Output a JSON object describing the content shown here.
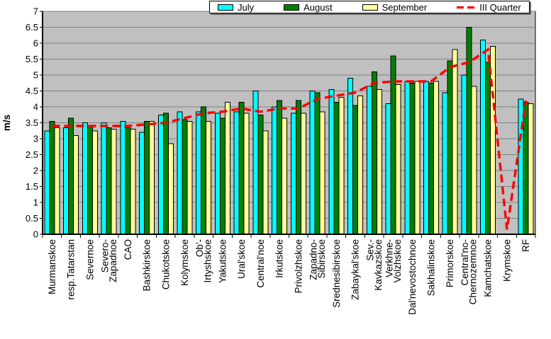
{
  "legend": {
    "items": [
      {
        "label": "July",
        "color": "#00FFFF",
        "swatch": "filled-box"
      },
      {
        "label": "August",
        "color": "#008000",
        "swatch": "filled-box"
      },
      {
        "label": "September",
        "color": "#FFFF99",
        "swatch": "filled-box"
      },
      {
        "label": "III Quarter",
        "color": "#FF0000",
        "swatch": "red-dashed-line"
      }
    ]
  },
  "chart_data": {
    "type": "bar",
    "title": "",
    "ylabel": "m/s",
    "xlabel": "",
    "ylim": [
      0,
      7
    ],
    "ytick_step": 0.5,
    "yticks": [
      "0",
      "0.5",
      "1",
      "1.5",
      "2",
      "2.5",
      "3",
      "3.5",
      "4",
      "4.5",
      "5",
      "5.5",
      "6",
      "6.5",
      "7"
    ],
    "grid": true,
    "legend_position": "top-center",
    "plot_bg": "#C0C0C0",
    "gridline_color": "#808080",
    "categories": [
      "Murmanskoe",
      "resp.Tatarstan",
      "Severnoe",
      "Severo-\nZapadnoe",
      "CAO",
      "Bashkirskoe",
      "Chukotskoe",
      "Kolymskoe",
      "Ob'-\nIrtyshskoe",
      "Yakutskoe",
      "Ural'skoe",
      "Central'noe",
      "Irkutskoe",
      "Privolzhskoe",
      "Zapadno-\nSibirskoe",
      "Srednesibirskoe",
      "Zabaykal'skoe",
      "Sev.-\nKavkazskoe",
      "Verkhne-\nVolzhskoe",
      "Dal'nevostochnoe",
      "Sakhalinskoe",
      "Primorskoe",
      "Central'no-\nChernozemnoe",
      "Kamchatskoe",
      "Krymskoe",
      "RF"
    ],
    "series": [
      {
        "name": "July",
        "color": "#00FFFF",
        "values": [
          3.25,
          3.35,
          3.5,
          3.5,
          3.55,
          3.2,
          3.75,
          3.85,
          3.85,
          3.8,
          3.85,
          4.5,
          4.0,
          3.8,
          4.5,
          4.55,
          4.9,
          4.65,
          4.1,
          4.8,
          4.8,
          4.45,
          5.0,
          6.1,
          null,
          4.25
        ]
      },
      {
        "name": "August",
        "color": "#008000",
        "values": [
          3.55,
          3.65,
          3.4,
          3.35,
          3.35,
          3.55,
          3.8,
          3.6,
          4.0,
          3.65,
          4.15,
          3.75,
          4.2,
          4.2,
          4.45,
          4.15,
          4.05,
          5.1,
          5.6,
          4.75,
          4.75,
          5.45,
          6.5,
          5.4,
          null,
          4.15
        ]
      },
      {
        "name": "September",
        "color": "#FFFF99",
        "values": [
          3.35,
          3.1,
          3.25,
          3.3,
          3.3,
          3.55,
          2.85,
          3.55,
          3.55,
          4.15,
          3.8,
          3.25,
          3.65,
          3.8,
          3.85,
          4.3,
          4.35,
          4.55,
          4.7,
          4.8,
          4.8,
          5.8,
          4.65,
          5.9,
          null,
          4.1
        ]
      }
    ],
    "line_series": {
      "name": "III Quarter",
      "color": "#FF0000",
      "style": "dashed",
      "values": [
        3.4,
        3.4,
        3.4,
        3.4,
        3.4,
        3.45,
        3.5,
        3.65,
        3.8,
        3.85,
        3.95,
        3.85,
        3.95,
        3.95,
        4.25,
        4.35,
        4.45,
        4.75,
        4.8,
        4.8,
        4.8,
        5.25,
        5.4,
        5.8,
        0.15,
        4.2
      ]
    }
  }
}
